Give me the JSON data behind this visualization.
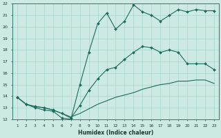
{
  "xlabel": "Humidex (Indice chaleur)",
  "xlim_left": 0.5,
  "xlim_right": 23.5,
  "ylim_bottom": 12,
  "ylim_top": 22,
  "xticks": [
    1,
    2,
    3,
    4,
    5,
    6,
    7,
    8,
    9,
    10,
    11,
    12,
    13,
    14,
    15,
    16,
    17,
    18,
    19,
    20,
    21,
    22,
    23
  ],
  "yticks": [
    12,
    13,
    14,
    15,
    16,
    17,
    18,
    19,
    20,
    21,
    22
  ],
  "bg_color": "#cce9e4",
  "grid_color": "#a8d5ce",
  "line_color": "#1a6b5a",
  "line1_x": [
    1,
    2,
    3,
    4,
    5,
    6,
    7,
    8,
    9,
    10,
    11,
    12,
    13,
    14,
    15,
    16,
    17,
    18,
    19,
    20,
    21,
    22,
    23
  ],
  "line1_y": [
    13.9,
    13.3,
    13.0,
    12.8,
    12.7,
    12.1,
    12.0,
    15.0,
    17.8,
    20.3,
    21.2,
    19.8,
    20.5,
    21.9,
    21.3,
    21.0,
    20.5,
    21.0,
    21.5,
    21.3,
    21.5,
    21.4,
    21.4
  ],
  "line2_x": [
    1,
    2,
    3,
    4,
    5,
    6,
    7,
    8,
    9,
    10,
    11,
    12,
    13,
    14,
    15,
    16,
    17,
    18,
    19,
    20,
    21,
    22,
    23
  ],
  "line2_y": [
    13.9,
    13.3,
    13.1,
    13.0,
    12.8,
    12.5,
    12.1,
    13.2,
    14.5,
    15.5,
    16.3,
    16.5,
    17.2,
    17.8,
    18.3,
    18.2,
    17.8,
    18.0,
    17.8,
    16.8,
    16.8,
    16.8,
    16.3
  ],
  "line3_x": [
    1,
    2,
    3,
    4,
    5,
    6,
    7,
    8,
    9,
    10,
    11,
    12,
    13,
    14,
    15,
    16,
    17,
    18,
    19,
    20,
    21,
    22,
    23
  ],
  "line3_y": [
    13.9,
    13.3,
    13.1,
    13.0,
    12.8,
    12.5,
    12.2,
    12.5,
    12.9,
    13.3,
    13.6,
    13.9,
    14.1,
    14.3,
    14.6,
    14.8,
    15.0,
    15.1,
    15.3,
    15.3,
    15.4,
    15.4,
    15.1
  ]
}
